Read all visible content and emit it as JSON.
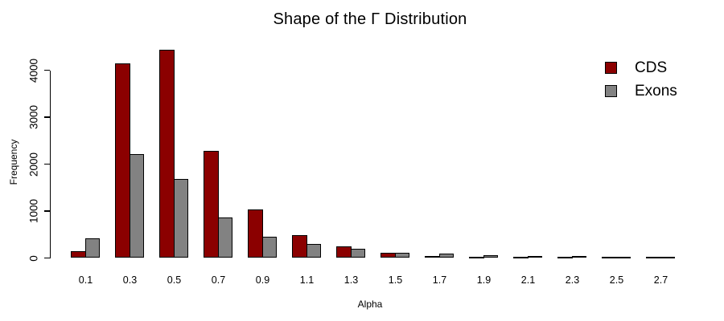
{
  "chart_data": {
    "type": "bar",
    "title": "Shape of the Γ Distribution",
    "xlabel": "Alpha",
    "ylabel": "Frequency",
    "categories": [
      "0.1",
      "0.3",
      "0.5",
      "0.7",
      "0.9",
      "1.1",
      "1.3",
      "1.5",
      "1.7",
      "1.9",
      "2.1",
      "2.3",
      "2.5",
      "2.7"
    ],
    "series": [
      {
        "name": "CDS",
        "color": "#8B0000",
        "values": [
          150,
          4150,
          4440,
          2280,
          1030,
          480,
          240,
          110,
          50,
          10,
          8,
          8,
          5,
          5
        ]
      },
      {
        "name": "Exons",
        "color": "#828282",
        "values": [
          420,
          2210,
          1680,
          870,
          450,
          300,
          200,
          110,
          95,
          60,
          50,
          50,
          20,
          20
        ]
      }
    ],
    "ylim": [
      0,
      4450
    ],
    "yticks": [
      0,
      1000,
      2000,
      3000,
      4000
    ],
    "grid": false,
    "legend_position": "top-right",
    "bar_border_color": "#000000"
  }
}
